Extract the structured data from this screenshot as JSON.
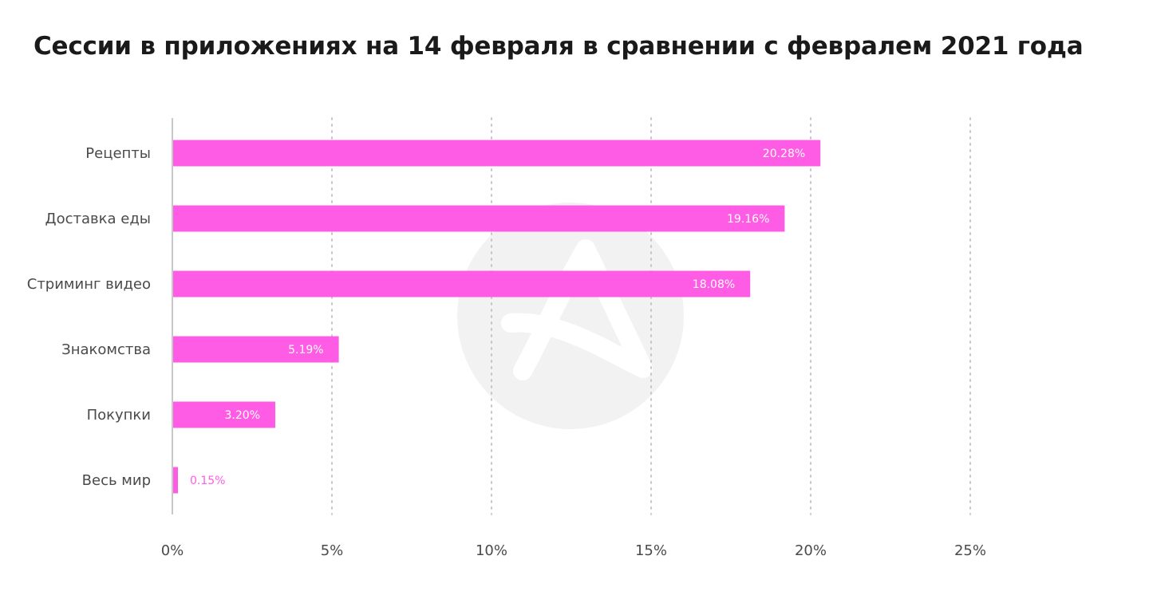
{
  "colors": {
    "bar": "#ff5ce6",
    "value_label_inside": "#ffffff",
    "value_label_outside": "#ff5ce6",
    "grid": "#c8c8c8",
    "axis": "#c8c8c8",
    "watermark": "#f2f2f2"
  },
  "watermark_icon": "logo-watermark-icon",
  "chart_data": {
    "type": "bar",
    "orientation": "horizontal",
    "title": "Сессии в приложениях на 14 февраля в сравнении с февралем 2021 года",
    "categories": [
      "Рецепты",
      "Доставка еды",
      "Стриминг видео",
      "Знакомства",
      "Покупки",
      "Весь мир"
    ],
    "values": [
      20.28,
      19.16,
      18.08,
      5.19,
      3.2,
      0.15
    ],
    "value_labels": [
      "20.28%",
      "19.16%",
      "18.08%",
      "5.19%",
      "3.20%",
      "0.15%"
    ],
    "xlim": [
      0,
      25
    ],
    "xticks": [
      0,
      5,
      10,
      15,
      20,
      25
    ],
    "xtick_labels": [
      "0%",
      "5%",
      "10%",
      "15%",
      "20%",
      "25%"
    ],
    "xlabel": "",
    "ylabel": "",
    "grid": true,
    "grid_style": "dotted",
    "legend": false
  }
}
